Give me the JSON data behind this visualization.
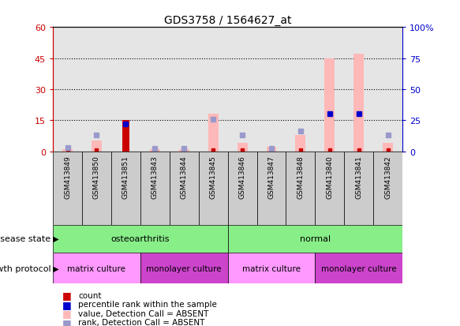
{
  "title": "GDS3758 / 1564627_at",
  "samples": [
    "GSM413849",
    "GSM413850",
    "GSM413851",
    "GSM413843",
    "GSM413844",
    "GSM413845",
    "GSM413846",
    "GSM413847",
    "GSM413848",
    "GSM413840",
    "GSM413841",
    "GSM413842"
  ],
  "pink_bar_values": [
    0.8,
    5.0,
    0.0,
    1.0,
    0.8,
    18.0,
    4.0,
    2.0,
    8.0,
    45.0,
    47.0,
    4.0
  ],
  "count_prominent_index": 2,
  "count_prominent_value": 15,
  "ylim_left": [
    0,
    60
  ],
  "ylim_right": [
    0,
    100
  ],
  "yticks_left": [
    0,
    15,
    30,
    45,
    60
  ],
  "yticks_right": [
    0,
    25,
    50,
    75,
    100
  ],
  "ytick_labels_left": [
    "0",
    "15",
    "30",
    "45",
    "60"
  ],
  "ytick_labels_right": [
    "0",
    "25",
    "50",
    "75",
    "100%"
  ],
  "left_tick_color": "#cc0000",
  "right_tick_color": "#0000cc",
  "dark_blue_indices": [
    2,
    9,
    10
  ],
  "dark_blue_vals": [
    22,
    30,
    30
  ],
  "light_blue_indices": [
    0,
    1,
    3,
    4,
    5,
    6,
    7,
    8,
    11
  ],
  "light_blue_vals": [
    3,
    13,
    2,
    2,
    26,
    13,
    2,
    16,
    13
  ],
  "red_dot_indices": [
    0,
    1,
    3,
    4,
    5,
    6,
    7,
    8,
    9,
    10,
    11
  ],
  "disease_state_labels": [
    {
      "label": "osteoarthritis",
      "start": 0,
      "end": 6
    },
    {
      "label": "normal",
      "start": 6,
      "end": 12
    }
  ],
  "growth_protocol_labels": [
    {
      "label": "matrix culture",
      "start": 0,
      "end": 3,
      "color": "#ff99ff"
    },
    {
      "label": "monolayer culture",
      "start": 3,
      "end": 6,
      "color": "#cc44cc"
    },
    {
      "label": "matrix culture",
      "start": 6,
      "end": 9,
      "color": "#ff99ff"
    },
    {
      "label": "monolayer culture",
      "start": 9,
      "end": 12,
      "color": "#cc44cc"
    }
  ],
  "disease_state_color": "#88ee88",
  "pink_bar_color": "#ffb8b8",
  "count_color": "#cc0000",
  "blue_square_color": "#0000cc",
  "light_blue_square_color": "#9999cc",
  "dotted_line_color": "#000000",
  "col_bg_color": "#cccccc"
}
